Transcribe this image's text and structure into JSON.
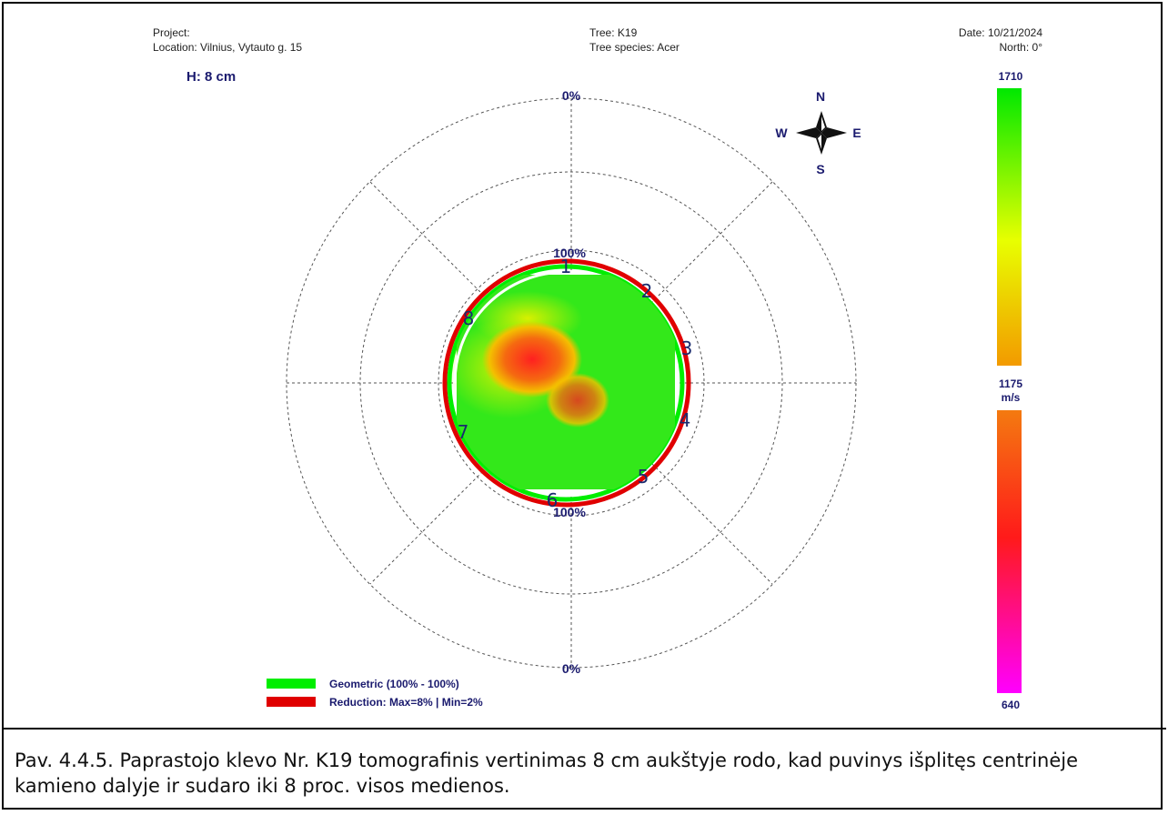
{
  "header": {
    "project": "Project:",
    "location": "Location: Vilnius, Vytauto g. 15",
    "tree": "Tree: K19",
    "species": "Tree species: Acer",
    "date": "Date: 10/21/2024",
    "north": "North: 0°",
    "height": "H: 8 cm"
  },
  "compass": {
    "n": "N",
    "s": "S",
    "e": "E",
    "w": "W"
  },
  "polar_labels": {
    "outer_top": "0%",
    "outer_bottom": "0%",
    "inner_top": "100%",
    "inner_bottom": "100%"
  },
  "sensors": [
    "1",
    "2",
    "3",
    "4",
    "5",
    "6",
    "7",
    "8"
  ],
  "scale": {
    "max": "1710",
    "mid": "1175",
    "unit": "m/s",
    "min": "640",
    "colors": {
      "top": "#00e800",
      "upper_mid": "#e8ff00",
      "mid": "#f39a00",
      "low": "#ff1a1a",
      "bottom": "#ff00ff"
    }
  },
  "legend": {
    "geometric": "Geometric (100% - 100%)",
    "reduction": "Reduction: Max=8% | Min=2%",
    "geometric_color": "#00ee00",
    "reduction_color": "#e00000"
  },
  "caption": " Pav. 4.4.5.  Paprastojo klevo Nr. K19  tomografinis vertinimas 8 cm aukštyje rodo, kad  puvinys išplitęs centrinėje kamieno dalyje ir sudaro iki 8 proc. visos medienos."
}
